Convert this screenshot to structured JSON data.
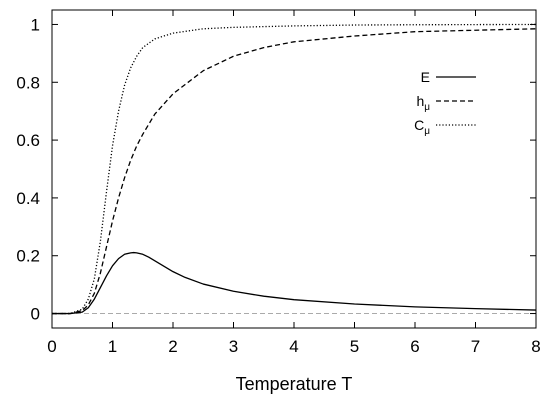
{
  "chart_data": {
    "type": "line",
    "title": "",
    "xlabel": "Temperature T",
    "ylabel": "",
    "xlim": [
      0,
      8
    ],
    "ylim": [
      -0.05,
      1.05
    ],
    "x_ticks": [
      "0",
      "1",
      "2",
      "3",
      "4",
      "5",
      "6",
      "7",
      "8"
    ],
    "y_ticks": [
      "0",
      "0.2",
      "0.4",
      "0.6",
      "0.8",
      "1"
    ],
    "grid": false,
    "legend_position": "top-right",
    "series": [
      {
        "name": "E",
        "subscript": "",
        "style": "solid",
        "color": "#000000",
        "x": [
          0,
          0.3,
          0.5,
          0.6,
          0.7,
          0.8,
          0.9,
          1.0,
          1.1,
          1.2,
          1.3,
          1.35,
          1.4,
          1.5,
          1.6,
          1.8,
          2.0,
          2.2,
          2.5,
          3.0,
          3.5,
          4.0,
          5.0,
          6.0,
          7.0,
          8.0
        ],
        "y": [
          0,
          0,
          0.005,
          0.02,
          0.05,
          0.09,
          0.13,
          0.165,
          0.19,
          0.205,
          0.21,
          0.211,
          0.21,
          0.205,
          0.195,
          0.17,
          0.145,
          0.125,
          0.102,
          0.077,
          0.06,
          0.048,
          0.033,
          0.023,
          0.017,
          0.012
        ]
      },
      {
        "name": "h",
        "subscript": "μ",
        "style": "dashed",
        "color": "#000000",
        "x": [
          0,
          0.3,
          0.5,
          0.6,
          0.7,
          0.8,
          0.9,
          1.0,
          1.1,
          1.2,
          1.3,
          1.4,
          1.5,
          1.7,
          2.0,
          2.5,
          3.0,
          3.5,
          4.0,
          5.0,
          6.0,
          7.0,
          8.0
        ],
        "y": [
          0,
          0,
          0.01,
          0.03,
          0.07,
          0.14,
          0.23,
          0.32,
          0.4,
          0.47,
          0.53,
          0.58,
          0.62,
          0.69,
          0.76,
          0.84,
          0.89,
          0.92,
          0.94,
          0.96,
          0.975,
          0.98,
          0.985
        ]
      },
      {
        "name": "C",
        "subscript": "μ",
        "style": "dotted",
        "color": "#000000",
        "x": [
          0,
          0.3,
          0.5,
          0.6,
          0.7,
          0.8,
          0.9,
          1.0,
          1.1,
          1.2,
          1.3,
          1.4,
          1.5,
          1.7,
          2.0,
          2.5,
          3.0,
          4.0,
          5.0,
          6.0,
          8.0
        ],
        "y": [
          0,
          0,
          0.015,
          0.05,
          0.12,
          0.25,
          0.42,
          0.58,
          0.7,
          0.79,
          0.85,
          0.89,
          0.92,
          0.95,
          0.97,
          0.985,
          0.99,
          0.995,
          0.998,
          0.999,
          1.0
        ]
      }
    ],
    "reference_lines": [
      {
        "y": 0,
        "style": "dashed",
        "color": "#aaaaaa"
      }
    ]
  }
}
